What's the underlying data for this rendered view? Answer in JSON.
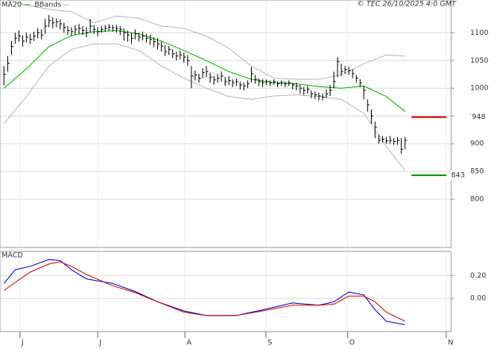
{
  "chart_data": [
    {
      "type": "ohlc",
      "legend": [
        {
          "name": "MA20",
          "color": "#00b000"
        },
        {
          "name": "BBands",
          "color": "#b8b8b8"
        }
      ],
      "note": "© TEC 26/10/2025 4:0 GMT",
      "color": "#000000",
      "xlim": [
        -1.06,
        119.3
      ],
      "ylim": [
        713,
        1159
      ],
      "yticks": [
        800,
        850,
        900,
        950,
        1000,
        1050,
        1100
      ],
      "grid": true,
      "x": [
        0,
        1,
        2,
        3,
        4,
        5,
        6,
        7,
        8,
        9,
        10,
        11,
        12,
        13,
        14,
        15,
        16,
        17,
        18,
        19,
        20,
        21,
        22,
        23,
        24,
        25,
        26,
        27,
        28,
        29,
        30,
        31,
        32,
        33,
        34,
        35,
        36,
        37,
        38,
        39,
        40,
        41,
        42,
        43,
        44,
        45,
        46,
        47,
        48,
        49,
        50,
        51,
        52,
        53,
        54,
        55,
        56,
        57,
        58,
        59,
        60,
        61,
        62,
        63,
        64,
        65,
        66,
        67,
        68,
        69,
        70,
        71,
        72,
        73,
        74,
        75,
        76,
        77,
        78,
        79,
        80,
        81,
        82,
        83,
        84,
        85,
        86,
        87,
        88,
        89,
        90,
        91,
        92,
        93,
        94,
        95,
        96,
        97,
        98,
        99,
        100,
        101,
        102,
        103,
        104,
        105,
        106,
        107
      ],
      "close": [
        1025,
        1045,
        1075,
        1090,
        1094,
        1085,
        1092,
        1088,
        1094,
        1100,
        1096,
        1112,
        1122,
        1118,
        1120,
        1116,
        1110,
        1104,
        1102,
        1106,
        1108,
        1104,
        1100,
        1112,
        1106,
        1102,
        1106,
        1108,
        1110,
        1109,
        1108,
        1106,
        1100,
        1096,
        1090,
        1098,
        1092,
        1094,
        1090,
        1088,
        1084,
        1080,
        1076,
        1066,
        1070,
        1062,
        1058,
        1060,
        1056,
        1050,
        1022,
        1024,
        1018,
        1028,
        1030,
        1020,
        1015,
        1018,
        1022,
        1012,
        1014,
        1010,
        1012,
        1006,
        1004,
        1008,
        1026,
        1016,
        1012,
        1010,
        1012,
        1010,
        1012,
        1008,
        1010,
        1008,
        1010,
        1006,
        1004,
        1000,
        996,
        998,
        990,
        988,
        986,
        984,
        990,
        996,
        1012,
        1048,
        1030,
        1034,
        1032,
        1026,
        1018,
        1010,
        996,
        970,
        950,
        930,
        906,
        908,
        905,
        906,
        904,
        906,
        890,
        906
      ],
      "high": [
        1040,
        1058,
        1085,
        1100,
        1104,
        1095,
        1100,
        1098,
        1102,
        1108,
        1106,
        1125,
        1132,
        1128,
        1126,
        1124,
        1118,
        1112,
        1110,
        1114,
        1116,
        1112,
        1110,
        1125,
        1114,
        1110,
        1112,
        1114,
        1116,
        1114,
        1114,
        1112,
        1108,
        1104,
        1100,
        1106,
        1100,
        1102,
        1098,
        1096,
        1092,
        1090,
        1084,
        1078,
        1076,
        1070,
        1066,
        1068,
        1064,
        1060,
        1040,
        1032,
        1026,
        1036,
        1040,
        1028,
        1022,
        1026,
        1030,
        1020,
        1022,
        1016,
        1018,
        1012,
        1010,
        1014,
        1038,
        1024,
        1018,
        1016,
        1016,
        1014,
        1016,
        1012,
        1014,
        1012,
        1014,
        1010,
        1010,
        1006,
        1002,
        1004,
        996,
        994,
        992,
        990,
        998,
        1006,
        1030,
        1056,
        1044,
        1040,
        1038,
        1034,
        1024,
        1016,
        1004,
        980,
        962,
        940,
        916,
        914,
        912,
        914,
        910,
        912,
        910,
        912
      ],
      "low": [
        1005,
        1030,
        1060,
        1080,
        1084,
        1075,
        1082,
        1080,
        1085,
        1090,
        1088,
        1098,
        1110,
        1108,
        1110,
        1106,
        1100,
        1096,
        1094,
        1096,
        1098,
        1096,
        1092,
        1100,
        1098,
        1094,
        1100,
        1102,
        1104,
        1102,
        1100,
        1096,
        1086,
        1084,
        1080,
        1088,
        1084,
        1086,
        1082,
        1078,
        1074,
        1070,
        1066,
        1058,
        1060,
        1054,
        1050,
        1052,
        1046,
        1040,
        1000,
        1014,
        1010,
        1018,
        1020,
        1010,
        1006,
        1010,
        1012,
        1004,
        1006,
        1002,
        1004,
        998,
        996,
        1000,
        1010,
        1008,
        1004,
        1002,
        1006,
        1004,
        1006,
        1002,
        1004,
        1002,
        1004,
        998,
        996,
        990,
        988,
        990,
        982,
        980,
        978,
        978,
        982,
        986,
        1000,
        1020,
        1022,
        1026,
        1024,
        1018,
        1010,
        1002,
        980,
        958,
        936,
        910,
        900,
        902,
        900,
        900,
        898,
        898,
        882,
        890
      ],
      "overlays": [
        {
          "name": "MA20",
          "color": "#00b000",
          "x": [
            0,
            6,
            12,
            18,
            24,
            30,
            36,
            42,
            48,
            54,
            60,
            66,
            72,
            78,
            84,
            90,
            96,
            102,
            107
          ],
          "values": [
            1000,
            1035,
            1075,
            1095,
            1102,
            1104,
            1098,
            1085,
            1068,
            1050,
            1030,
            1016,
            1010,
            1008,
            1003,
            1000,
            1004,
            985,
            958
          ]
        },
        {
          "name": "BBands",
          "color": "#b8b8b8",
          "x": [
            0,
            6,
            12,
            18,
            24,
            30,
            36,
            42,
            48,
            54,
            60,
            66,
            72,
            78,
            84,
            90,
            96,
            102,
            107
          ],
          "upper": [
            1160,
            1150,
            1142,
            1138,
            1118,
            1130,
            1126,
            1112,
            1108,
            1094,
            1072,
            1040,
            1018,
            1016,
            1016,
            1024,
            1044,
            1060,
            1058
          ],
          "lower": [
            936,
            985,
            1040,
            1070,
            1080,
            1080,
            1068,
            1040,
            1018,
            1000,
            985,
            980,
            986,
            988,
            985,
            980,
            955,
            895,
            852
          ]
        }
      ],
      "levels": [
        {
          "value": 948,
          "color": "#cc0000"
        },
        {
          "value": 843,
          "color": "#009900"
        }
      ]
    },
    {
      "type": "line",
      "title": "MACD",
      "xlim": [
        -1.06,
        119.3
      ],
      "xticks": [
        {
          "value": 4.24,
          "label": "J"
        },
        {
          "value": 25,
          "label": "J"
        },
        {
          "value": 48.3,
          "label": "A"
        },
        {
          "value": 69.9,
          "label": "S"
        },
        {
          "value": 91.7,
          "label": "O"
        },
        {
          "value": 118,
          "label": "N"
        }
      ],
      "ylim": [
        -0.29,
        0.41
      ],
      "yticks": [
        {
          "value": 0.2,
          "label": "0.20"
        },
        {
          "value": 0,
          "label": "0.00"
        }
      ],
      "grid": true,
      "series": [
        {
          "color": "#0000cc",
          "x": [
            0,
            3,
            7,
            12,
            15,
            18,
            22,
            29,
            35,
            41,
            48,
            54,
            62,
            69,
            77,
            84,
            88,
            92,
            96,
            99,
            102,
            107
          ],
          "values": [
            0.13,
            0.25,
            0.28,
            0.34,
            0.33,
            0.25,
            0.17,
            0.13,
            0.06,
            -0.03,
            -0.11,
            -0.15,
            -0.15,
            -0.1,
            -0.04,
            -0.06,
            -0.03,
            0.055,
            0.03,
            -0.1,
            -0.2,
            -0.23
          ]
        },
        {
          "color": "#cc0000",
          "x": [
            0,
            3,
            7,
            12,
            15,
            18,
            22,
            29,
            35,
            41,
            48,
            54,
            62,
            69,
            77,
            84,
            88,
            92,
            96,
            99,
            102,
            107
          ],
          "values": [
            0.07,
            0.14,
            0.23,
            0.3,
            0.32,
            0.28,
            0.21,
            0.11,
            0.05,
            -0.03,
            -0.12,
            -0.15,
            -0.15,
            -0.11,
            -0.06,
            -0.06,
            -0.05,
            0.02,
            0.02,
            -0.03,
            -0.12,
            -0.2
          ]
        }
      ]
    }
  ]
}
